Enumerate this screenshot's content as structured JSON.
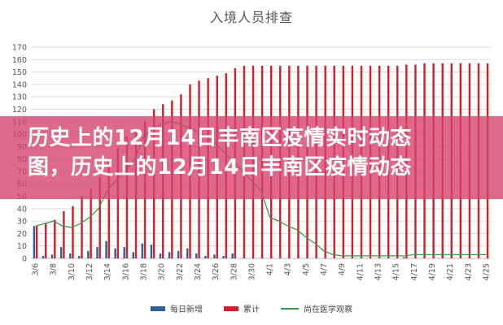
{
  "chart_data": {
    "type": "bar",
    "title": "入境人员排查",
    "categories": [
      "3/6",
      "3/7",
      "3/8",
      "3/9",
      "3/10",
      "3/11",
      "3/12",
      "3/13",
      "3/14",
      "3/15",
      "3/16",
      "3/17",
      "3/18",
      "3/19",
      "3/20",
      "3/21",
      "3/22",
      "3/23",
      "3/24",
      "3/25",
      "3/26",
      "3/27",
      "3/28",
      "3/29",
      "3/30",
      "3/31",
      "4/1",
      "4/2",
      "4/3",
      "4/4",
      "4/5",
      "4/6",
      "4/7",
      "4/8",
      "4/9",
      "4/10",
      "4/11",
      "4/12",
      "4/13",
      "4/14",
      "4/15",
      "4/16",
      "4/17",
      "4/18",
      "4/19",
      "4/20",
      "4/21",
      "4/22",
      "4/23",
      "4/24",
      "4/25"
    ],
    "tick_labels": [
      "3/6",
      "3/8",
      "3/10",
      "3/12",
      "3/14",
      "3/16",
      "3/18",
      "3/20",
      "3/22",
      "3/24",
      "3/26",
      "3/28",
      "3/30",
      "4/1",
      "4/3",
      "4/5",
      "4/7",
      "4/9",
      "4/11",
      "4/13",
      "4/15",
      "4/17",
      "4/19",
      "4/21",
      "4/23",
      "4/25"
    ],
    "ylim": [
      0,
      170
    ],
    "yticks": [
      0,
      10,
      20,
      30,
      40,
      50,
      60,
      70,
      80,
      90,
      100,
      110,
      120,
      130,
      140,
      150,
      160,
      170
    ],
    "series": [
      {
        "name": "每日新增",
        "type": "bar",
        "color": "#2e5f9e",
        "values": [
          26,
          2,
          3,
          9,
          4,
          2,
          6,
          9,
          14,
          8,
          9,
          5,
          12,
          11,
          4,
          5,
          6,
          8,
          4,
          2,
          3,
          2,
          4,
          0,
          0,
          0,
          0,
          0,
          0,
          0,
          0,
          0,
          0,
          0,
          0,
          0,
          0,
          0,
          0,
          0,
          0,
          1,
          0,
          0,
          0,
          0,
          0,
          0,
          0,
          0,
          0
        ]
      },
      {
        "name": "累计",
        "type": "bar",
        "color": "#d0202a",
        "values": [
          26,
          28,
          31,
          38,
          42,
          50,
          56,
          66,
          81,
          89,
          98,
          103,
          110,
          120,
          124,
          127,
          132,
          140,
          143,
          145,
          147,
          149,
          153,
          155,
          155,
          155,
          155,
          155,
          155,
          155,
          155,
          155,
          155,
          155,
          155,
          155,
          155,
          155,
          155,
          155,
          155,
          156,
          156,
          157,
          157,
          157,
          157,
          157,
          157,
          157,
          157
        ]
      },
      {
        "name": "尚在医学观察",
        "type": "line",
        "color": "#3a9a4a",
        "values": [
          26,
          28,
          30,
          26,
          25,
          28,
          33,
          40,
          55,
          63,
          70,
          80,
          98,
          105,
          108,
          110,
          108,
          105,
          102,
          98,
          92,
          85,
          78,
          70,
          62,
          55,
          33,
          30,
          26,
          23,
          17,
          12,
          6,
          3,
          2,
          2,
          2,
          2,
          2,
          2,
          2,
          2,
          3,
          3,
          3,
          3,
          3,
          3,
          3,
          3,
          3
        ]
      }
    ],
    "legend_position": "bottom",
    "grid": true
  },
  "banner": {
    "line1": "历史上的12月14日丰南区疫情实时动态",
    "line2": "图，历史上的12月14日丰南区疫情动态"
  }
}
